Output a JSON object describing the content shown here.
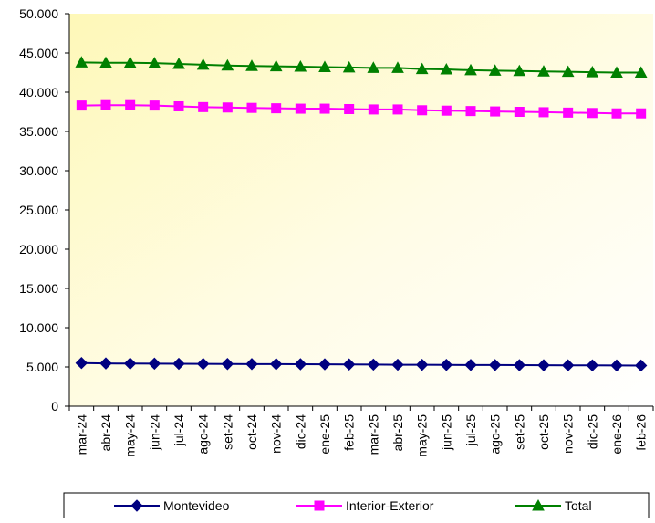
{
  "chart_data": {
    "type": "line",
    "title": "",
    "xlabel": "",
    "ylabel": "",
    "categories": [
      "mar-24",
      "abr-24",
      "may-24",
      "jun-24",
      "jul-24",
      "ago-24",
      "set-24",
      "oct-24",
      "nov-24",
      "dic-24",
      "ene-25",
      "feb-25",
      "mar-25",
      "abr-25",
      "may-25",
      "jun-25",
      "jul-25",
      "ago-25",
      "set-25",
      "oct-25",
      "nov-25",
      "dic-25",
      "ene-26",
      "feb-26"
    ],
    "ylim": [
      0,
      50000
    ],
    "y_ticks": [
      0,
      5000,
      10000,
      15000,
      20000,
      25000,
      30000,
      35000,
      40000,
      45000,
      50000
    ],
    "y_tick_labels": [
      "0",
      "5.000",
      "10.000",
      "15.000",
      "20.000",
      "25.000",
      "30.000",
      "35.000",
      "40.000",
      "45.000",
      "50.000"
    ],
    "grid": false,
    "legend_position": "bottom",
    "plot_background": "gradient light yellow to white",
    "series": [
      {
        "name": "Montevideo",
        "color": "#000080",
        "marker": "diamond",
        "values": [
          5500,
          5450,
          5430,
          5420,
          5400,
          5390,
          5380,
          5370,
          5360,
          5350,
          5340,
          5320,
          5300,
          5280,
          5270,
          5260,
          5250,
          5240,
          5230,
          5220,
          5210,
          5200,
          5190,
          5180
        ]
      },
      {
        "name": "Interior-Exterior",
        "color": "#FF00FF",
        "marker": "square",
        "values": [
          38300,
          38350,
          38350,
          38300,
          38200,
          38100,
          38050,
          38000,
          37950,
          37900,
          37900,
          37850,
          37800,
          37800,
          37700,
          37650,
          37600,
          37550,
          37500,
          37450,
          37400,
          37350,
          37300,
          37300
        ]
      },
      {
        "name": "Total",
        "color": "#008000",
        "marker": "triangle",
        "values": [
          43800,
          43750,
          43750,
          43700,
          43600,
          43500,
          43400,
          43350,
          43300,
          43250,
          43200,
          43150,
          43100,
          43100,
          42950,
          42900,
          42800,
          42750,
          42700,
          42650,
          42600,
          42550,
          42500,
          42500
        ]
      }
    ]
  }
}
